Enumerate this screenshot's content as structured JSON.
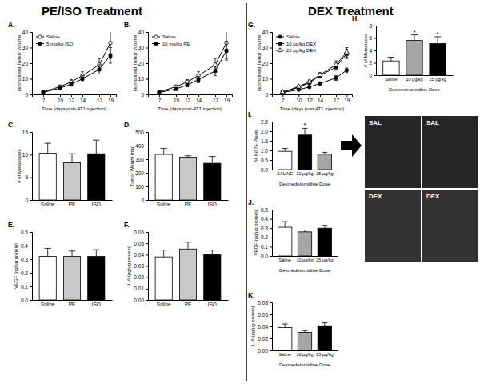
{
  "figure": {
    "headings": [
      "PE/ISO Treatment",
      "DEX Treatment"
    ],
    "micrograph_labels": [
      "SAL",
      "SAL",
      "DEX",
      "DEX"
    ]
  },
  "chart_data": [
    {
      "type": "line",
      "title": "A.",
      "x_label": "Time (days post-4T1 injection)",
      "y_label": "Normalized Tumor Volume",
      "x": [
        7,
        10,
        12,
        14,
        17,
        19
      ],
      "xlim": [
        5,
        20
      ],
      "xticks": [
        7,
        10,
        12,
        14,
        17,
        19
      ],
      "ylim": [
        0,
        40
      ],
      "yticks": [
        0,
        10,
        20,
        30,
        40
      ],
      "legend": "upper left",
      "series": [
        {
          "name": "Saline",
          "color": "#000000",
          "marker": "open-circle",
          "values": [
            1.5,
            5,
            8,
            12,
            19,
            33
          ],
          "errors": [
            0.3,
            1,
            1.5,
            2.5,
            4,
            10
          ]
        },
        {
          "name": "5 mg/kg ISO",
          "color": "#000000",
          "marker": "square",
          "values": [
            1.3,
            4,
            6.5,
            10,
            16,
            25
          ],
          "errors": [
            0.3,
            0.8,
            1.2,
            2,
            3,
            5
          ]
        }
      ]
    },
    {
      "type": "line",
      "title": "B.",
      "x_label": "Time (days post-4T1 injection)",
      "y_label": "Normalized Tumor Volume",
      "x": [
        7,
        10,
        12,
        14,
        17,
        19
      ],
      "xlim": [
        5,
        20
      ],
      "xticks": [
        7,
        10,
        12,
        14,
        17,
        19
      ],
      "ylim": [
        0,
        40
      ],
      "yticks": [
        0,
        10,
        20,
        30,
        40
      ],
      "legend": "upper left",
      "series": [
        {
          "name": "Saline",
          "color": "#000000",
          "marker": "open-circle",
          "values": [
            1.5,
            5,
            8,
            12,
            19,
            33
          ],
          "errors": [
            0.3,
            1,
            1.5,
            2.5,
            4,
            10
          ]
        },
        {
          "name": "10 mg/kg PE",
          "color": "#000000",
          "marker": "square",
          "values": [
            1.2,
            3.5,
            6,
            9.5,
            15,
            28
          ],
          "errors": [
            0.3,
            0.8,
            1,
            2,
            3,
            6
          ]
        }
      ]
    },
    {
      "type": "bar",
      "title": "C.",
      "y_label": "# of Metastases",
      "categories": [
        "Saline",
        "PE",
        "ISO"
      ],
      "values": [
        10.3,
        8.2,
        10.2
      ],
      "errors": [
        2.2,
        2,
        3
      ],
      "colors": [
        "#ffffff",
        "#c8c8c8",
        "#000000"
      ],
      "ylim": [
        0,
        15
      ],
      "yticks": [
        0,
        5,
        10,
        15
      ]
    },
    {
      "type": "bar",
      "title": "D.",
      "y_label": "Tumor Weight (mg)",
      "categories": [
        "Saline",
        "PE",
        "ISO"
      ],
      "values": [
        335,
        315,
        270
      ],
      "errors": [
        45,
        10,
        50
      ],
      "colors": [
        "#ffffff",
        "#c8c8c8",
        "#000000"
      ],
      "ylim": [
        0,
        500
      ],
      "yticks": [
        0,
        100,
        200,
        300,
        400,
        500
      ]
    },
    {
      "type": "bar",
      "title": "E.",
      "y_label": "VEGF (pg/µg protein)",
      "categories": [
        "Saline",
        "PE",
        "ISO"
      ],
      "values": [
        0.32,
        0.32,
        0.32
      ],
      "errors": [
        0.06,
        0.04,
        0.05
      ],
      "colors": [
        "#ffffff",
        "#c8c8c8",
        "#000000"
      ],
      "ylim": [
        0,
        0.5
      ],
      "yticks": [
        {
          "value": 0,
          "label": "0.0"
        },
        0.1,
        0.2,
        0.3,
        0.4,
        0.5
      ]
    },
    {
      "type": "bar",
      "title": "F.",
      "y_label": "IL-6 (pg/µg protein)",
      "categories": [
        "Saline",
        "PE",
        "ISO"
      ],
      "values": [
        0.038,
        0.045,
        0.04
      ],
      "errors": [
        0.006,
        0.006,
        0.004
      ],
      "colors": [
        "#ffffff",
        "#c8c8c8",
        "#000000"
      ],
      "ylim": [
        0,
        0.06
      ],
      "yticks": [
        {
          "value": 0,
          "label": "0.00"
        },
        0.01,
        0.02,
        0.03,
        0.04,
        0.05,
        0.06
      ]
    },
    {
      "type": "line",
      "title": "G.",
      "x_label": "Time (days post-4T1 injection)",
      "y_label": "Normalized Tumor Volume",
      "x": [
        7,
        10,
        12,
        14,
        17,
        19
      ],
      "xlim": [
        5,
        20
      ],
      "xticks": [
        7,
        10,
        12,
        14,
        17,
        19
      ],
      "ylim": [
        0,
        40
      ],
      "yticks": [
        0,
        10,
        20,
        30,
        40
      ],
      "legend": "upper left",
      "series": [
        {
          "name": "Saline",
          "color": "#000000",
          "marker": "circle",
          "values": [
            1.2,
            3,
            4.8,
            7,
            10.5,
            15.5
          ],
          "errors": [
            0.2,
            0.5,
            0.7,
            1,
            1.5,
            1.5
          ]
        },
        {
          "name": "10 µg/kg DEX",
          "color": "#000000",
          "marker": "square",
          "values": [
            1.5,
            4.5,
            7.5,
            12,
            17.5,
            26
          ],
          "errors": [
            0.3,
            0.8,
            1,
            1.5,
            2,
            3
          ]
        },
        {
          "name": "25 µg/kg DEX",
          "color": "#000000",
          "marker": "open-triangle",
          "values": [
            1.5,
            5,
            8,
            12.5,
            19,
            27
          ],
          "errors": [
            0.3,
            0.8,
            1.2,
            1.5,
            2.5,
            3
          ]
        }
      ]
    },
    {
      "type": "bar",
      "title": "H.",
      "y_label": "# of Metastases",
      "x_label": "Dexmedetomidine Dose",
      "categories": [
        "Saline",
        "10 µg/kg",
        "25 µg/kg"
      ],
      "values": [
        2.3,
        5.6,
        5.1
      ],
      "errors": [
        0.6,
        0.9,
        1.1
      ],
      "colors": [
        "#ffffff",
        "#a6a6a6",
        "#000000"
      ],
      "ylim": [
        0,
        8
      ],
      "yticks": [
        0,
        2,
        4,
        6,
        8
      ],
      "annotations": [
        {
          "text": "*",
          "category": 1
        },
        {
          "text": "*",
          "category": 2
        }
      ]
    },
    {
      "type": "bar",
      "title": "I.",
      "y_label": "% Ki67+ Pixels",
      "x_label": "Dexmedetomidine Dose",
      "categories": [
        "SALINE",
        "10 µg/kg",
        "25 µg/kg"
      ],
      "values": [
        0.95,
        1.8,
        0.8
      ],
      "errors": [
        0.15,
        0.35,
        0.1
      ],
      "colors": [
        "#ffffff",
        "#000000",
        "#a6a6a6"
      ],
      "ylim": [
        0,
        2.5
      ],
      "yticks": [
        {
          "value": 0,
          "label": "0.0"
        },
        0.5,
        {
          "value": 1,
          "label": "1.0"
        },
        1.5,
        {
          "value": 2,
          "label": "2.0"
        },
        2.5
      ],
      "annotations": [
        {
          "text": "*",
          "category": 1
        }
      ]
    },
    {
      "type": "bar",
      "title": "J.",
      "y_label": "VEGF (pg/µg protein)",
      "x_label": "Dexmedetomidine Dose",
      "categories": [
        "Saline",
        "10 µg/kg",
        "25 µg/kg"
      ],
      "values": [
        0.31,
        0.26,
        0.3
      ],
      "errors": [
        0.06,
        0.02,
        0.03
      ],
      "colors": [
        "#ffffff",
        "#a6a6a6",
        "#000000"
      ],
      "ylim": [
        0,
        0.5
      ],
      "yticks": [
        {
          "value": 0,
          "label": "0.0"
        },
        0.1,
        0.2,
        0.3,
        0.4,
        0.5
      ]
    },
    {
      "type": "bar",
      "title": "K.",
      "y_label": "IL-6 (pg/µg protein)",
      "x_label": "Dexmedetomidine Dose",
      "categories": [
        "Saline",
        "10 µg/kg",
        "25 µg/kg"
      ],
      "values": [
        0.038,
        0.03,
        0.041
      ],
      "errors": [
        0.006,
        0.003,
        0.005
      ],
      "colors": [
        "#ffffff",
        "#a6a6a6",
        "#000000"
      ],
      "ylim": [
        0,
        0.08
      ],
      "yticks": [
        {
          "value": 0,
          "label": "0.00"
        },
        0.02,
        0.04,
        0.06,
        0.08
      ]
    }
  ]
}
